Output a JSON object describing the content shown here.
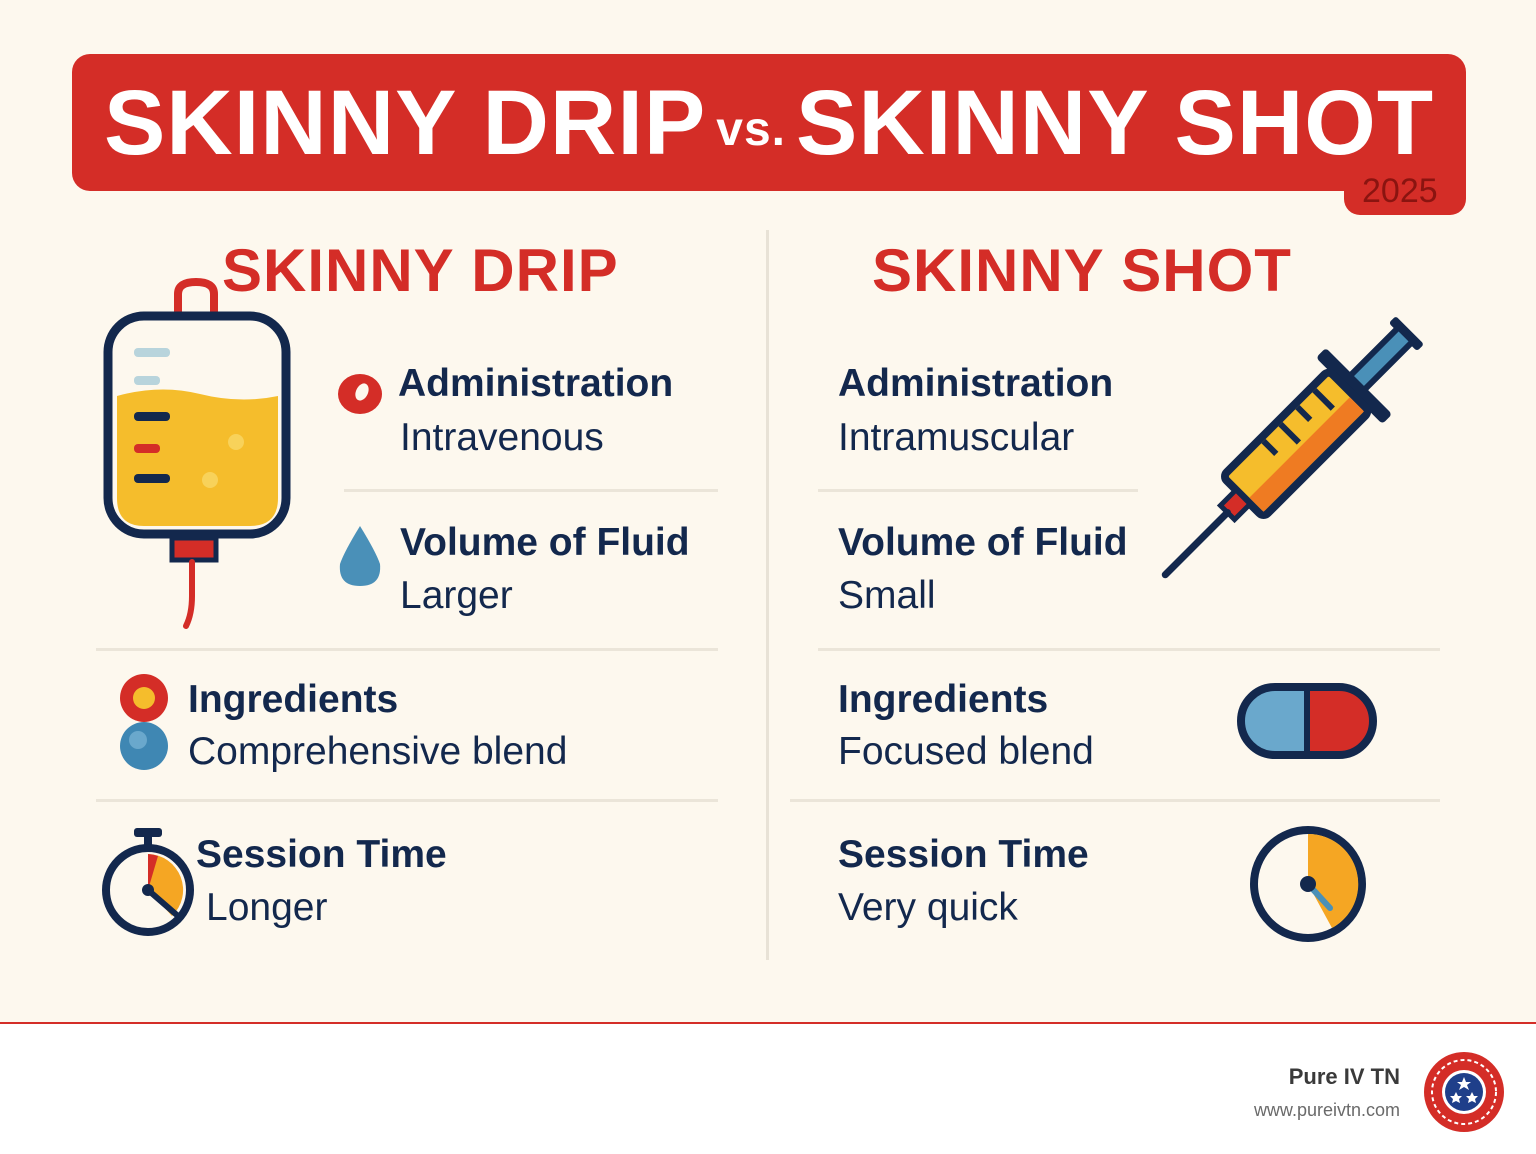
{
  "header": {
    "title_left": "SKINNY DRIP",
    "title_vs": "vs.",
    "title_right": "SKINNY SHOT",
    "year": "2025"
  },
  "drip": {
    "heading": "SKINNY DRIP",
    "administration": {
      "label": "Administration",
      "value": "Intravenous"
    },
    "volume": {
      "label": "Volume of Fluid",
      "value": "Larger"
    },
    "ingredients": {
      "label": "Ingredients",
      "value": "Comprehensive blend"
    },
    "session": {
      "label": "Session Time",
      "value": "Longer"
    }
  },
  "shot": {
    "heading": "SKINNY SHOT",
    "administration": {
      "label": "Administration",
      "value": "Intramuscular"
    },
    "volume": {
      "label": "Volume of Fluid",
      "value": "Small"
    },
    "ingredients": {
      "label": "Ingredients",
      "value": "Focused blend"
    },
    "session": {
      "label": "Session Time",
      "value": "Very quick"
    }
  },
  "footer": {
    "brand": "Pure IV TN",
    "url": "www.pureivtn.com"
  },
  "colors": {
    "accent_red": "#d42d27",
    "navy": "#13284d",
    "background": "#fdf8ee",
    "yellow": "#f5bd2c",
    "blue": "#4a90b8"
  },
  "icons": [
    "iv-bag-icon",
    "syringe-icon",
    "drop-icon",
    "capsule-icon",
    "stopwatch-icon",
    "clock-icon",
    "ingredient-dots-icon",
    "tennessee-seal-icon"
  ]
}
